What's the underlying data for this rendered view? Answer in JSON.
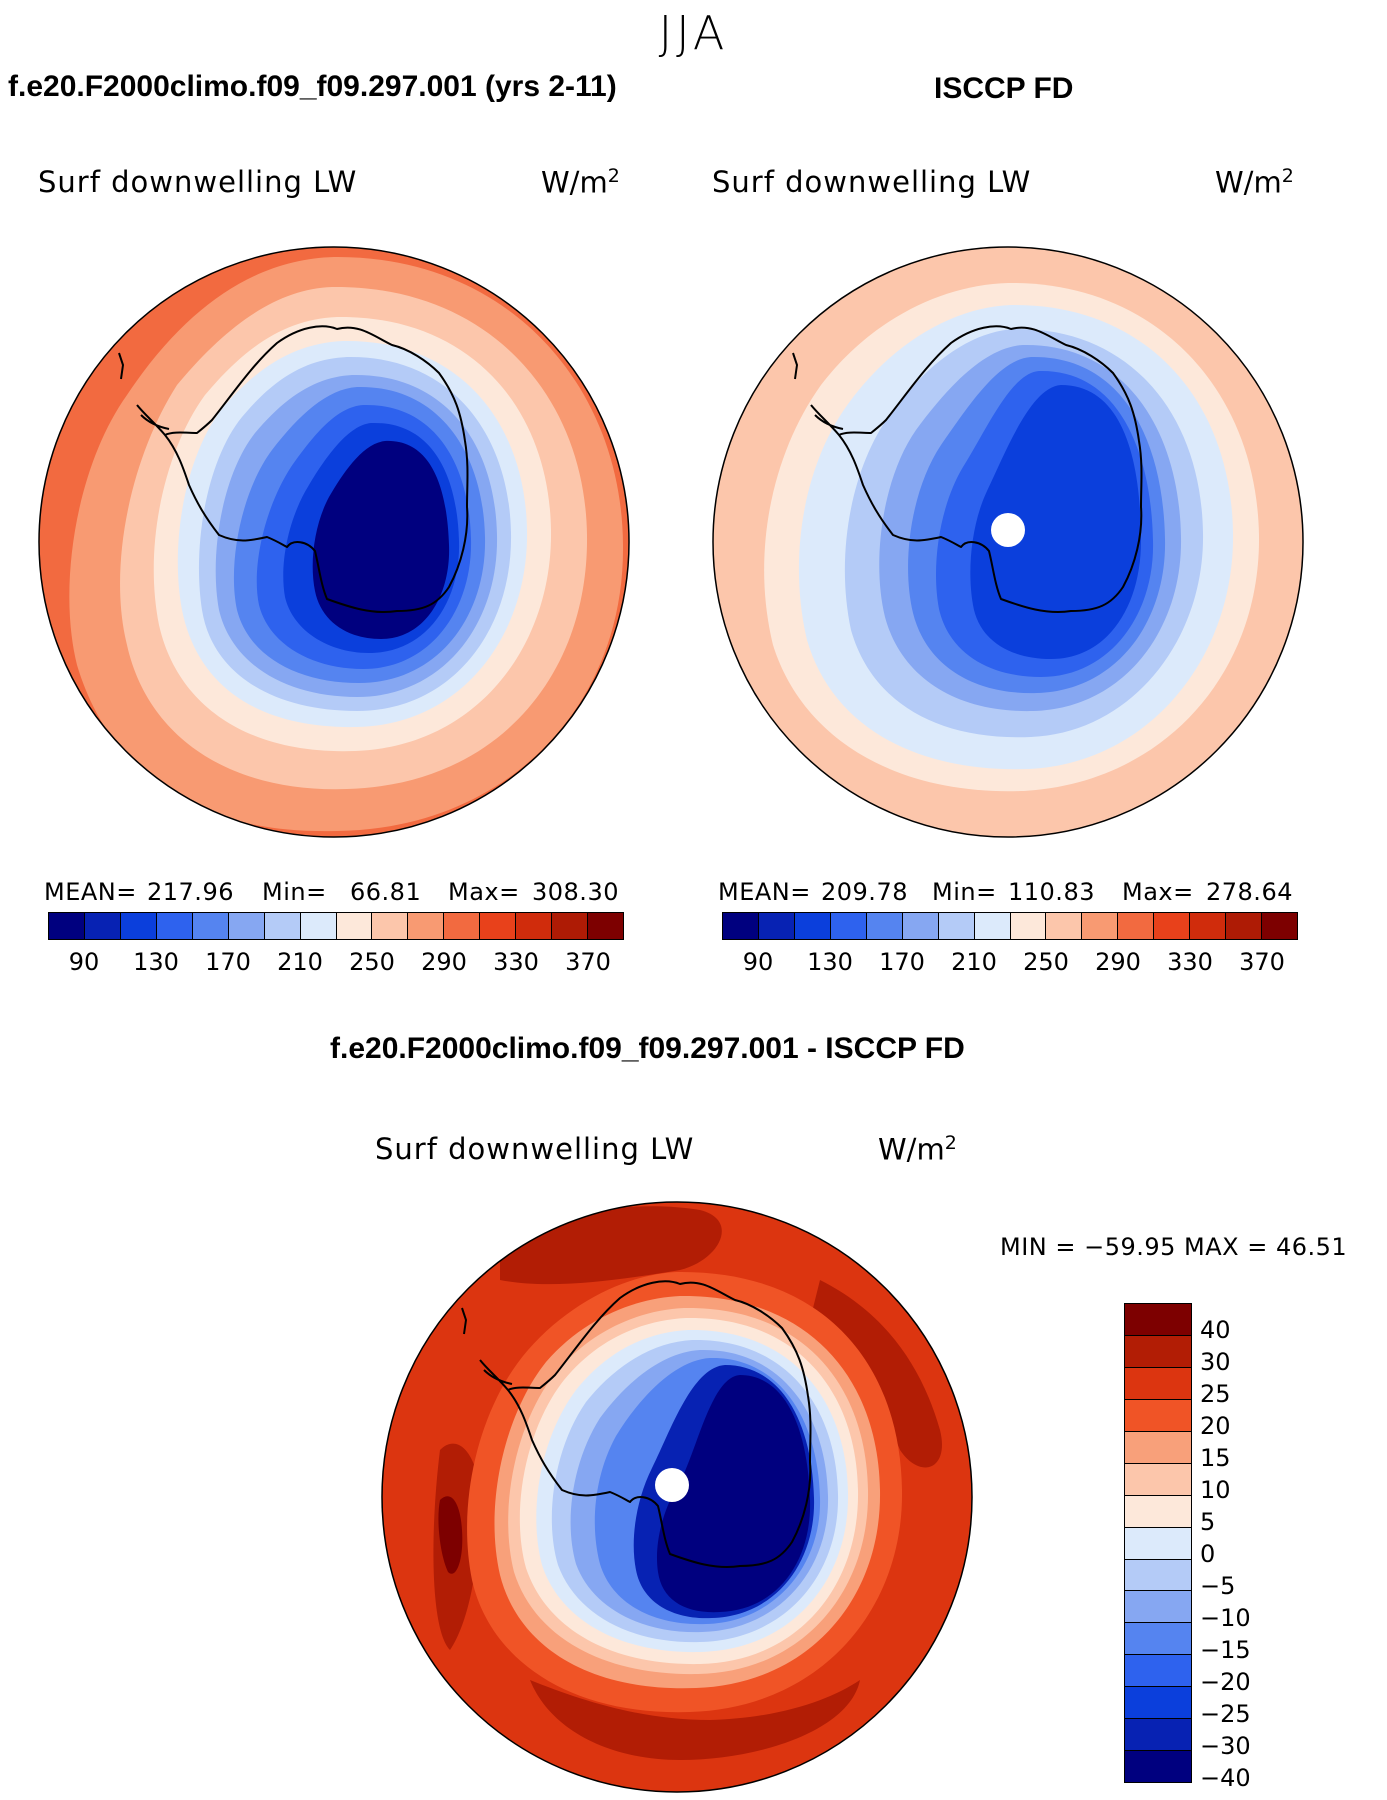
{
  "season": "JJA",
  "panels": [
    {
      "id": "model",
      "case_title": "f.e20.F2000climo.f09_f09.297.001 (yrs 2-11)",
      "variable": "Surf downwelling LW",
      "units_base": "W/m",
      "units_exp": "2",
      "stats": {
        "mean_label": "MEAN=",
        "mean": "217.96",
        "min_label": "Min=",
        "min": "66.81",
        "max_label": "Max=",
        "max": "308.30"
      },
      "pole_missing": false
    },
    {
      "id": "obs",
      "case_title": "ISCCP FD",
      "variable": "Surf downwelling LW",
      "units_base": "W/m",
      "units_exp": "2",
      "stats": {
        "mean_label": "MEAN=",
        "mean": "209.78",
        "min_label": "Min=",
        "min": "110.83",
        "max_label": "Max=",
        "max": "278.64"
      },
      "pole_missing": true
    }
  ],
  "abs_colorbar": {
    "colors": [
      "#00007f",
      "#0722b3",
      "#0b3fdc",
      "#2e62ee",
      "#5584f0",
      "#86a7f2",
      "#b4cbf7",
      "#dceafb",
      "#fde8da",
      "#fcc6ab",
      "#f89a72",
      "#f26a40",
      "#e8411b",
      "#d02c0c",
      "#ae1b05",
      "#7d0000"
    ],
    "ticks": [
      "90",
      "130",
      "170",
      "210",
      "250",
      "290",
      "330",
      "370"
    ]
  },
  "diff_panel": {
    "case_title": "f.e20.F2000climo.f09_f09.297.001 - ISCCP FD",
    "variable": "Surf downwelling LW",
    "units_base": "W/m",
    "units_exp": "2",
    "minmax_label": "MIN = −59.95 MAX =  46.51",
    "pole_missing": true
  },
  "diff_colorbar": {
    "colors": [
      "#7d0000",
      "#b21d05",
      "#dc3510",
      "#f05426",
      "#f8a07a",
      "#fcc6ab",
      "#fde8da",
      "#dceafb",
      "#b4cbf7",
      "#86a7f2",
      "#5584f0",
      "#2e62ee",
      "#0b3fdc",
      "#0722b3",
      "#00007f"
    ],
    "ticks": [
      "40",
      "30",
      "25",
      "20",
      "15",
      "10",
      "5",
      "0",
      "−5",
      "−10",
      "−15",
      "−20",
      "−25",
      "−30",
      "−40"
    ]
  },
  "chart_data": [
    {
      "type": "heatmap",
      "title": "f.e20.F2000climo.f09_f09.297.001 (yrs 2-11)",
      "variable": "Surf downwelling LW",
      "units": "W/m^2",
      "projection": "south polar stereographic",
      "season": "JJA",
      "mean": 217.96,
      "min": 66.81,
      "max": 308.3,
      "levels": [
        90,
        130,
        170,
        210,
        250,
        290,
        330,
        370
      ]
    },
    {
      "type": "heatmap",
      "title": "ISCCP FD",
      "variable": "Surf downwelling LW",
      "units": "W/m^2",
      "projection": "south polar stereographic",
      "season": "JJA",
      "mean": 209.78,
      "min": 110.83,
      "max": 278.64,
      "levels": [
        90,
        130,
        170,
        210,
        250,
        290,
        330,
        370
      ]
    },
    {
      "type": "heatmap",
      "title": "f.e20.F2000climo.f09_f09.297.001 - ISCCP FD",
      "variable": "Surf downwelling LW",
      "units": "W/m^2",
      "projection": "south polar stereographic",
      "season": "JJA",
      "min": -59.95,
      "max": 46.51,
      "levels": [
        -40,
        -30,
        -25,
        -20,
        -15,
        -10,
        -5,
        0,
        5,
        10,
        15,
        20,
        25,
        30,
        40
      ]
    }
  ]
}
